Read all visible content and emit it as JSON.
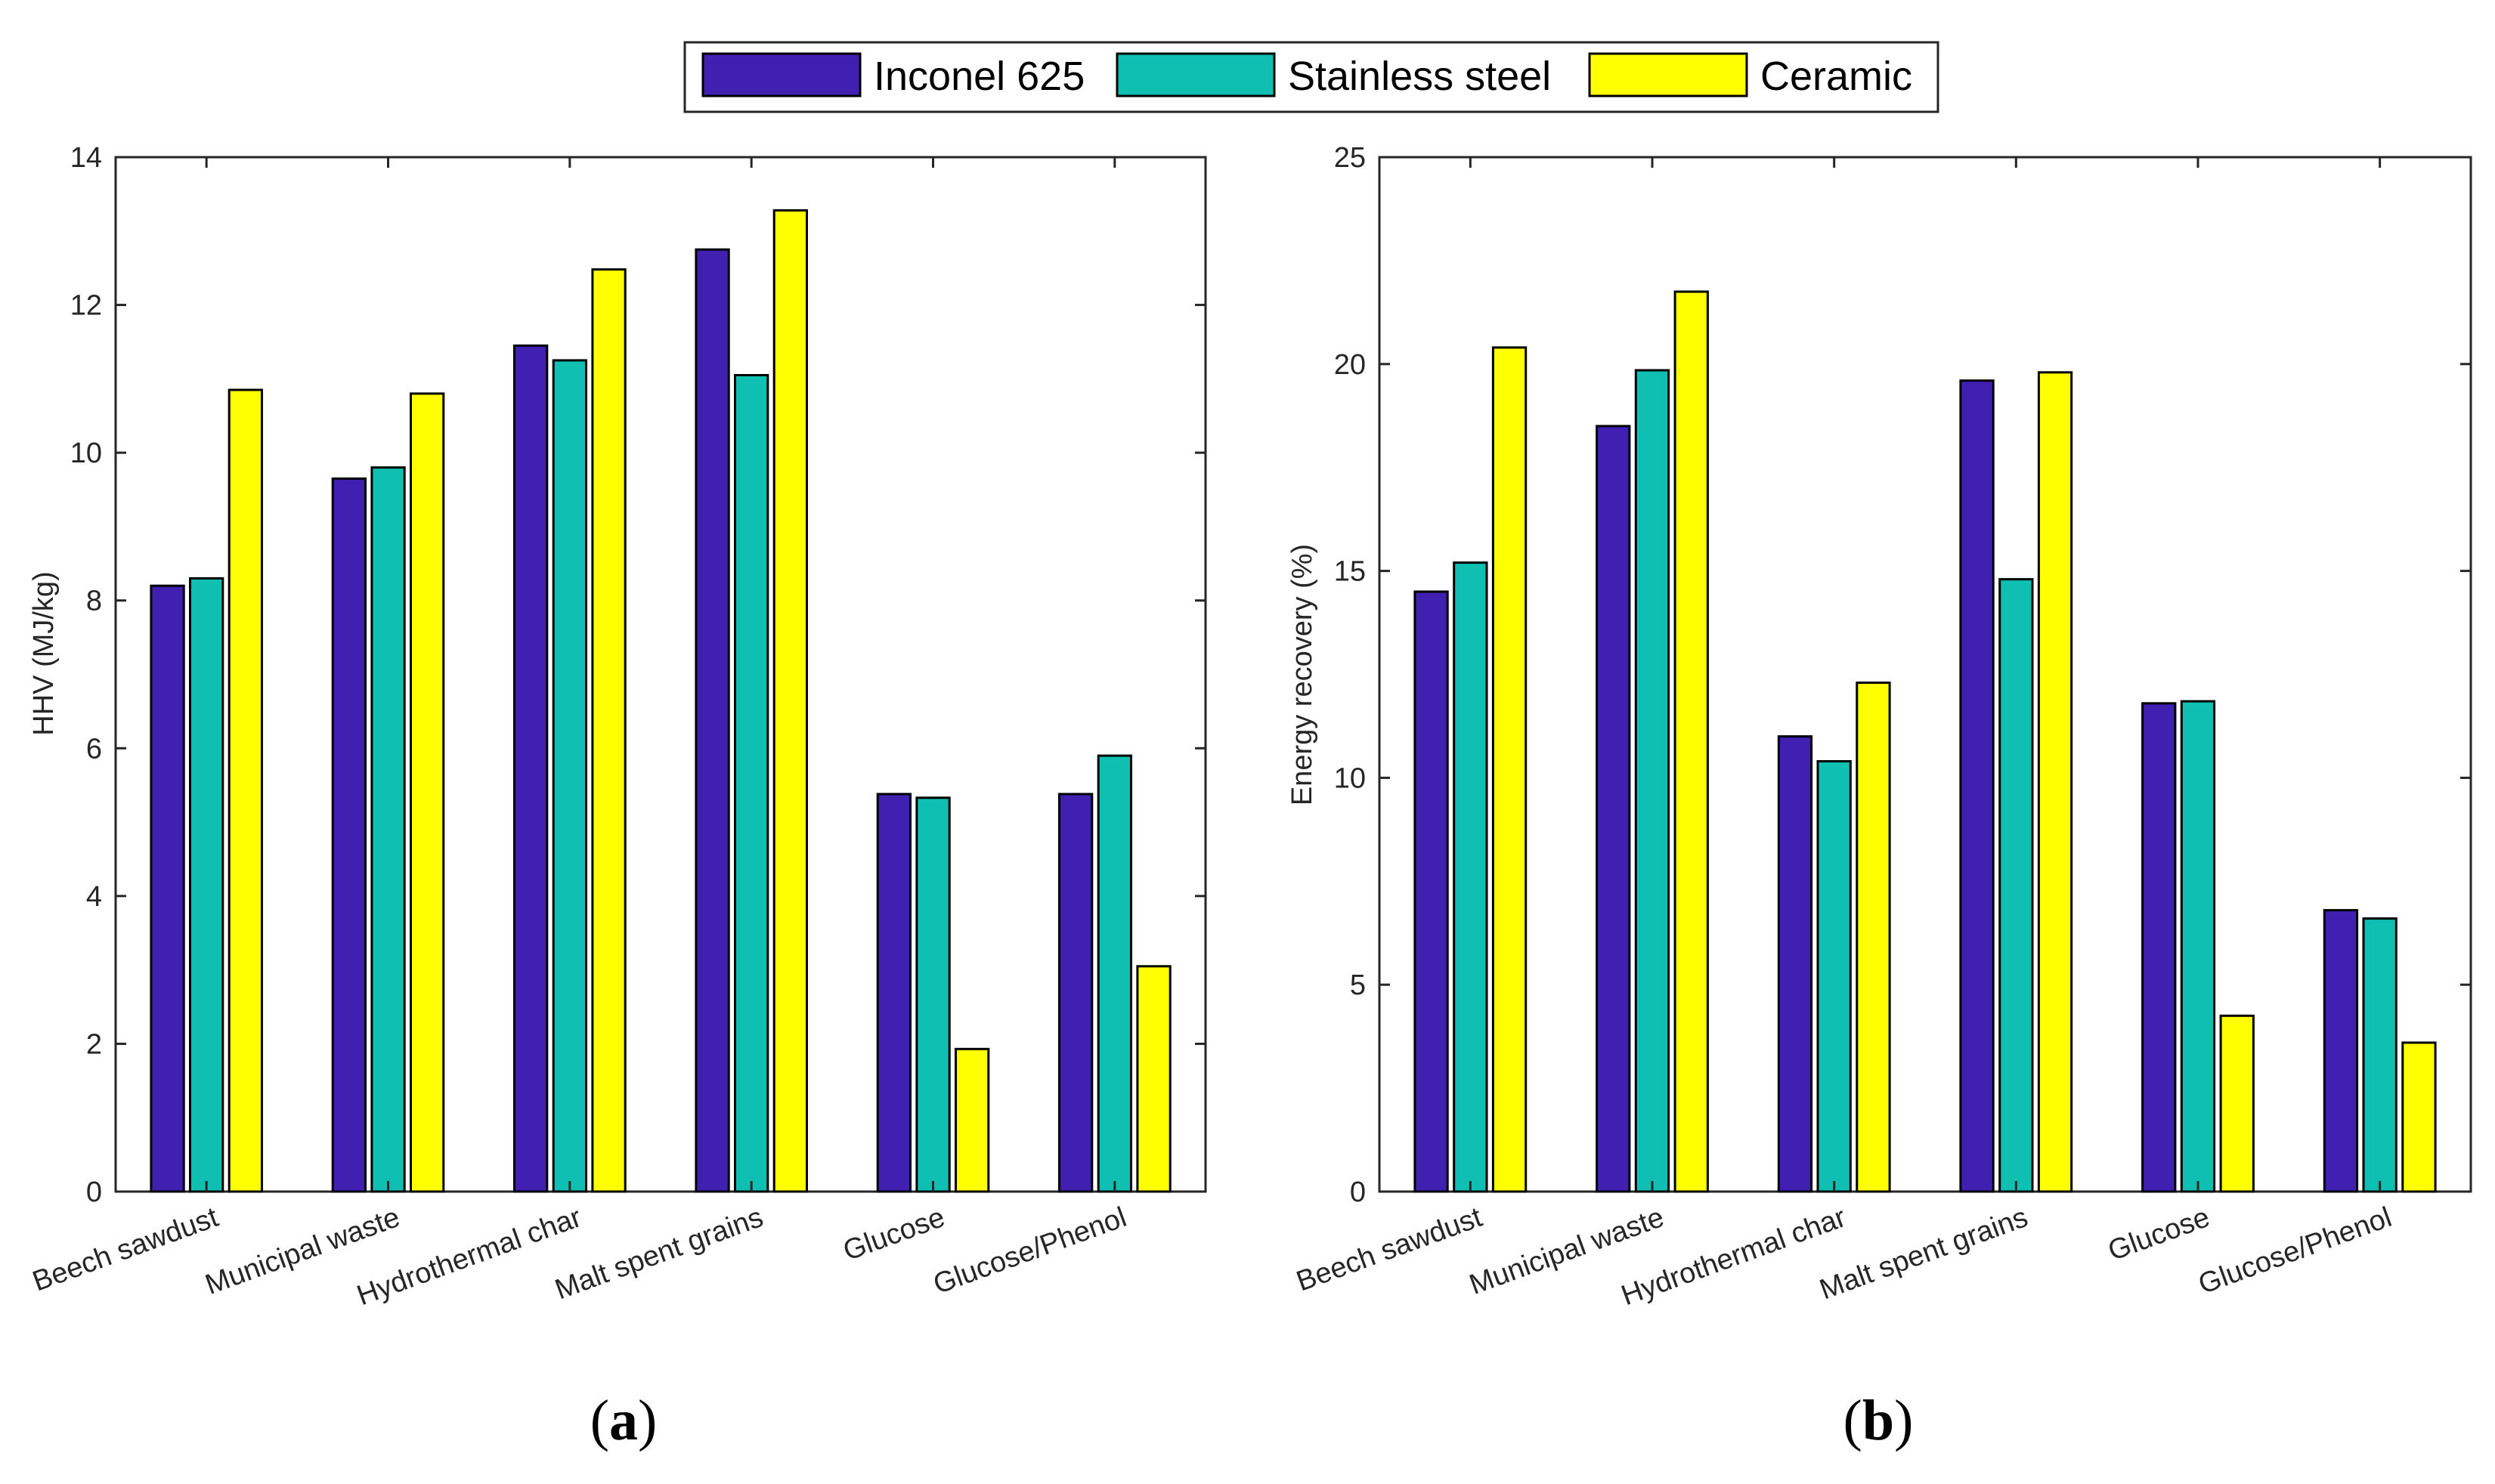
{
  "legend": {
    "entries": [
      {
        "label": "Inconel 625",
        "color": "#4020B0"
      },
      {
        "label": "Stainless steel",
        "color": "#0FBFB2"
      },
      {
        "label": "Ceramic",
        "color": "#FFFF00"
      }
    ]
  },
  "chart_data": [
    {
      "type": "bar",
      "panel_label": "(a)",
      "panel_letter": "a",
      "title": "",
      "xlabel": "",
      "ylabel": "HHV (MJ/kg)",
      "ylim": [
        0,
        14
      ],
      "yticks": [
        0,
        2,
        4,
        6,
        8,
        10,
        12,
        14
      ],
      "grid": false,
      "categories": [
        "Beech sawdust",
        "Municipal waste",
        "Hydrothermal char",
        "Malt spent grains",
        "Glucose",
        "Glucose/Phenol"
      ],
      "series": [
        {
          "name": "Inconel 625",
          "color": "#4020B0",
          "values": [
            8.2,
            9.65,
            11.45,
            12.75,
            5.38,
            5.38
          ]
        },
        {
          "name": "Stainless steel",
          "color": "#0FBFB2",
          "values": [
            8.3,
            9.8,
            11.25,
            11.05,
            5.33,
            5.9
          ]
        },
        {
          "name": "Ceramic",
          "color": "#FFFF00",
          "values": [
            10.85,
            10.8,
            12.48,
            13.28,
            1.93,
            3.05
          ]
        }
      ]
    },
    {
      "type": "bar",
      "panel_label": "(b)",
      "panel_letter": "b",
      "title": "",
      "xlabel": "",
      "ylabel": "Energy recovery (%)",
      "ylim": [
        0,
        25
      ],
      "yticks": [
        0,
        5,
        10,
        15,
        20,
        25
      ],
      "grid": false,
      "categories": [
        "Beech sawdust",
        "Municipal waste",
        "Hydrothermal char",
        "Malt spent grains",
        "Glucose",
        "Glucose/Phenol"
      ],
      "series": [
        {
          "name": "Inconel 625",
          "color": "#4020B0",
          "values": [
            14.5,
            18.5,
            11.0,
            19.6,
            11.8,
            6.8
          ]
        },
        {
          "name": "Stainless steel",
          "color": "#0FBFB2",
          "values": [
            15.2,
            19.85,
            10.4,
            14.8,
            11.85,
            6.6
          ]
        },
        {
          "name": "Ceramic",
          "color": "#FFFF00",
          "values": [
            20.4,
            21.75,
            12.3,
            19.8,
            4.25,
            3.6
          ]
        }
      ]
    }
  ]
}
